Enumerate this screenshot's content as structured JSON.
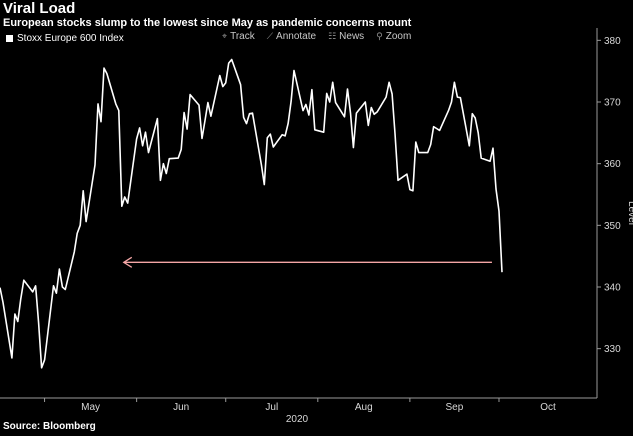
{
  "title": "Viral Load",
  "subtitle": "European stocks slump to the lowest since May as pandemic concerns mount",
  "source": "Source: Bloomberg",
  "toolbar": [
    {
      "label": "Track",
      "icon": "crosshair-icon",
      "glyph": "⌖"
    },
    {
      "label": "Annotate",
      "icon": "pencil-icon",
      "glyph": "⟋"
    },
    {
      "label": "News",
      "icon": "news-icon",
      "glyph": "☷"
    },
    {
      "label": "Zoom",
      "icon": "magnifier-icon",
      "glyph": "⚲"
    }
  ],
  "colors": {
    "background": "#000000",
    "line": "#ffffff",
    "arrow": "#f4a6a6",
    "axis": "#9a9a9a"
  },
  "chart_data": {
    "type": "line",
    "ylabel": "Level",
    "xlabel": "2020",
    "ylim": [
      322,
      382
    ],
    "yticks": [
      330,
      340,
      350,
      360,
      370,
      380
    ],
    "xticks": [
      {
        "label": "May",
        "date": "2020-05-01"
      },
      {
        "label": "Jun",
        "date": "2020-06-01"
      },
      {
        "label": "Jul",
        "date": "2020-07-01"
      },
      {
        "label": "Aug",
        "date": "2020-08-01"
      },
      {
        "label": "Sep",
        "date": "2020-09-01"
      },
      {
        "label": "Oct",
        "date": "2020-10-01"
      }
    ],
    "xlim": [
      "2020-04-16",
      "2020-11-03"
    ],
    "grid": false,
    "legend": "top-left",
    "series": [
      {
        "name": "Stoxx Europe 600 Index",
        "data": [
          [
            "2020-04-16",
            339.9
          ],
          [
            "2020-04-17",
            337.5
          ],
          [
            "2020-04-20",
            328.5
          ],
          [
            "2020-04-21",
            335.6
          ],
          [
            "2020-04-22",
            334.4
          ],
          [
            "2020-04-23",
            338.1
          ],
          [
            "2020-04-24",
            341.1
          ],
          [
            "2020-04-27",
            339.2
          ],
          [
            "2020-04-28",
            340.2
          ],
          [
            "2020-04-29",
            334.2
          ],
          [
            "2020-04-30",
            326.9
          ],
          [
            "2020-05-01",
            328.2
          ],
          [
            "2020-05-04",
            340.2
          ],
          [
            "2020-05-05",
            339.0
          ],
          [
            "2020-05-06",
            342.9
          ],
          [
            "2020-05-07",
            340.0
          ],
          [
            "2020-05-08",
            339.6
          ],
          [
            "2020-05-11",
            345.7
          ],
          [
            "2020-05-12",
            348.7
          ],
          [
            "2020-05-13",
            350.0
          ],
          [
            "2020-05-14",
            355.6
          ],
          [
            "2020-05-15",
            350.6
          ],
          [
            "2020-05-18",
            359.8
          ],
          [
            "2020-05-19",
            369.7
          ],
          [
            "2020-05-20",
            366.8
          ],
          [
            "2020-05-21",
            375.5
          ],
          [
            "2020-05-22",
            374.6
          ],
          [
            "2020-05-25",
            369.7
          ],
          [
            "2020-05-26",
            368.6
          ],
          [
            "2020-05-27",
            353.1
          ],
          [
            "2020-05-28",
            354.6
          ],
          [
            "2020-05-29",
            353.6
          ],
          [
            "2020-06-01",
            364.0
          ],
          [
            "2020-06-02",
            365.8
          ],
          [
            "2020-06-03",
            362.9
          ],
          [
            "2020-06-04",
            365.1
          ],
          [
            "2020-06-05",
            361.8
          ],
          [
            "2020-06-08",
            367.3
          ],
          [
            "2020-06-09",
            357.3
          ],
          [
            "2020-06-10",
            360.0
          ],
          [
            "2020-06-11",
            358.4
          ],
          [
            "2020-06-12",
            360.8
          ],
          [
            "2020-06-15",
            360.9
          ],
          [
            "2020-06-16",
            362.3
          ],
          [
            "2020-06-17",
            368.3
          ],
          [
            "2020-06-18",
            365.6
          ],
          [
            "2020-06-19",
            371.2
          ],
          [
            "2020-06-22",
            369.5
          ],
          [
            "2020-06-23",
            364.1
          ],
          [
            "2020-06-24",
            366.9
          ],
          [
            "2020-06-25",
            369.9
          ],
          [
            "2020-06-26",
            367.7
          ],
          [
            "2020-06-29",
            374.3
          ],
          [
            "2020-06-30",
            372.5
          ],
          [
            "2020-07-01",
            373.1
          ],
          [
            "2020-07-02",
            376.3
          ],
          [
            "2020-07-03",
            376.9
          ],
          [
            "2020-07-06",
            372.8
          ],
          [
            "2020-07-07",
            367.5
          ],
          [
            "2020-07-08",
            366.5
          ],
          [
            "2020-07-09",
            368.1
          ],
          [
            "2020-07-10",
            368.2
          ],
          [
            "2020-07-13",
            359.8
          ],
          [
            "2020-07-14",
            356.6
          ],
          [
            "2020-07-15",
            364.2
          ],
          [
            "2020-07-16",
            364.8
          ],
          [
            "2020-07-17",
            362.7
          ],
          [
            "2020-07-20",
            364.7
          ],
          [
            "2020-07-21",
            364.5
          ],
          [
            "2020-07-22",
            366.5
          ],
          [
            "2020-07-23",
            370.1
          ],
          [
            "2020-07-24",
            375.1
          ],
          [
            "2020-07-27",
            368.6
          ],
          [
            "2020-07-28",
            369.6
          ],
          [
            "2020-07-29",
            367.9
          ],
          [
            "2020-07-30",
            372.0
          ],
          [
            "2020-07-31",
            365.5
          ],
          [
            "2020-08-03",
            365.1
          ],
          [
            "2020-08-04",
            371.4
          ],
          [
            "2020-08-05",
            370.0
          ],
          [
            "2020-08-06",
            373.2
          ],
          [
            "2020-08-07",
            369.9
          ],
          [
            "2020-08-10",
            367.6
          ],
          [
            "2020-08-11",
            372.1
          ],
          [
            "2020-08-12",
            368.2
          ],
          [
            "2020-08-13",
            362.6
          ],
          [
            "2020-08-14",
            368.2
          ],
          [
            "2020-08-17",
            370.0
          ],
          [
            "2020-08-18",
            366.2
          ],
          [
            "2020-08-19",
            369.1
          ],
          [
            "2020-08-20",
            368.0
          ],
          [
            "2020-08-21",
            368.4
          ],
          [
            "2020-08-24",
            370.8
          ],
          [
            "2020-08-25",
            373.2
          ],
          [
            "2020-08-26",
            371.3
          ],
          [
            "2020-08-27",
            364.9
          ],
          [
            "2020-08-28",
            357.3
          ],
          [
            "2020-08-31",
            358.3
          ],
          [
            "2020-09-01",
            355.8
          ],
          [
            "2020-09-02",
            355.6
          ],
          [
            "2020-09-03",
            363.5
          ],
          [
            "2020-09-04",
            361.8
          ],
          [
            "2020-09-07",
            361.8
          ],
          [
            "2020-09-08",
            363.1
          ],
          [
            "2020-09-09",
            366.0
          ],
          [
            "2020-09-10",
            365.7
          ],
          [
            "2020-09-11",
            365.4
          ],
          [
            "2020-09-14",
            368.6
          ],
          [
            "2020-09-15",
            370.0
          ],
          [
            "2020-09-16",
            373.2
          ],
          [
            "2020-09-17",
            370.8
          ],
          [
            "2020-09-18",
            370.7
          ],
          [
            "2020-09-21",
            362.9
          ],
          [
            "2020-09-22",
            368.1
          ],
          [
            "2020-09-23",
            367.4
          ],
          [
            "2020-09-24",
            365.0
          ],
          [
            "2020-09-25",
            360.9
          ],
          [
            "2020-09-28",
            360.4
          ],
          [
            "2020-09-29",
            362.5
          ],
          [
            "2020-09-30",
            355.9
          ],
          [
            "2020-10-01",
            352.3
          ],
          [
            "2020-10-02",
            342.4
          ]
        ]
      }
    ],
    "annotations": [
      {
        "type": "arrow",
        "direction": "left",
        "y": 344.0,
        "from": "2020-10-02",
        "to": "2020-05-27"
      }
    ]
  }
}
